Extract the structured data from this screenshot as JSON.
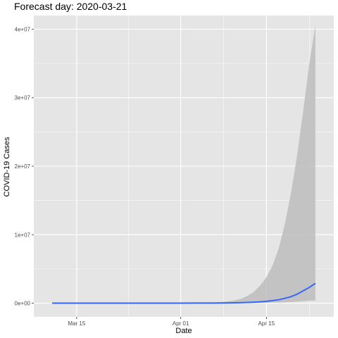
{
  "chart_data": {
    "type": "line",
    "title": "Forecast day: 2020-03-21",
    "xlabel": "Date",
    "ylabel": "COVID-19 Cases",
    "x_axis": {
      "type": "date",
      "range": [
        "2020-03-08",
        "2020-04-26"
      ],
      "ticks": [
        {
          "date": "2020-03-15",
          "label": "Mar 15"
        },
        {
          "date": "2020-04-01",
          "label": "Apr 01"
        },
        {
          "date": "2020-04-15",
          "label": "Apr 15"
        }
      ]
    },
    "y_axis": {
      "range": [
        -2000000,
        42000000
      ],
      "ticks": [
        {
          "value": 0,
          "label": "0e+00"
        },
        {
          "value": 10000000,
          "label": "1e+07"
        },
        {
          "value": 20000000,
          "label": "2e+07"
        },
        {
          "value": 30000000,
          "label": "3e+07"
        },
        {
          "value": 40000000,
          "label": "4e+07"
        }
      ]
    },
    "grid": true,
    "colors": {
      "panel": "#e5e5e5",
      "grid_major": "#ffffff",
      "line": "#3366ff",
      "ribbon": "#bdbdbd"
    },
    "x": [
      "2020-03-11",
      "2020-03-17",
      "2020-03-24",
      "2020-03-31",
      "2020-04-03",
      "2020-04-06",
      "2020-04-08",
      "2020-04-09",
      "2020-04-10",
      "2020-04-11",
      "2020-04-12",
      "2020-04-13",
      "2020-04-14",
      "2020-04-15",
      "2020-04-16",
      "2020-04-17",
      "2020-04-18",
      "2020-04-19",
      "2020-04-20",
      "2020-04-21",
      "2020-04-22",
      "2020-04-23"
    ],
    "series": [
      {
        "values": [
          0,
          1000,
          3000,
          6000,
          10000,
          20000,
          35000,
          45000,
          60000,
          80000,
          110000,
          150000,
          200000,
          270000,
          370000,
          500000,
          700000,
          950000,
          1300000,
          1800000,
          2300000,
          2900000
        ]
      }
    ],
    "ribbon": {
      "upper": [
        0,
        1000,
        5000,
        15000,
        40000,
        100000,
        200000,
        300000,
        450000,
        700000,
        1100000,
        1700000,
        2600000,
        3800000,
        5500000,
        8000000,
        11500000,
        16000000,
        21500000,
        28000000,
        35000000,
        40500000
      ],
      "lower": [
        0,
        500,
        1000,
        2000,
        3000,
        5000,
        8000,
        10000,
        13000,
        17000,
        22000,
        30000,
        40000,
        55000,
        75000,
        100000,
        130000,
        170000,
        220000,
        280000,
        350000,
        400000
      ]
    }
  }
}
